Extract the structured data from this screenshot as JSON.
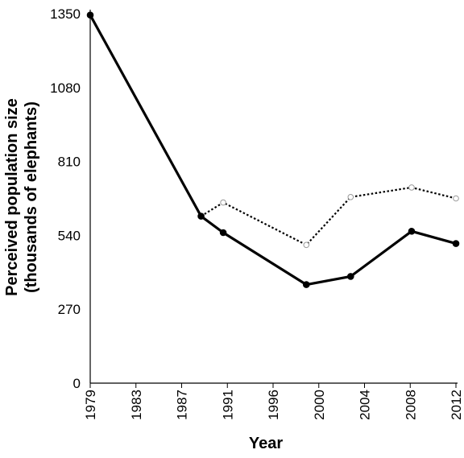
{
  "chart_data": {
    "type": "line",
    "xlabel": "Year",
    "ylabel_line1": "Perceived population size",
    "ylabel_line2": "(thousands of elephants)",
    "x_ticks": [
      "1979",
      "1983",
      "1987",
      "1991",
      "1996",
      "2000",
      "2004",
      "2008",
      "2012"
    ],
    "y_ticks": [
      0,
      270,
      540,
      810,
      1080,
      1350
    ],
    "ylim": [
      0,
      1350
    ],
    "x_domain": [
      1979,
      2012
    ],
    "grid": false,
    "legend": "none",
    "series": [
      {
        "style": "solid",
        "marker": "filled-circle",
        "color": "#000000",
        "points": [
          {
            "x": 1979,
            "y": 1345
          },
          {
            "x": 1989,
            "y": 610
          },
          {
            "x": 1991,
            "y": 550
          },
          {
            "x": 1998.5,
            "y": 360
          },
          {
            "x": 2002.5,
            "y": 390
          },
          {
            "x": 2008,
            "y": 555
          },
          {
            "x": 2012,
            "y": 510
          }
        ]
      },
      {
        "style": "dotted",
        "marker": "open-circle",
        "color": "#000000",
        "points": [
          {
            "x": 1989,
            "y": 610
          },
          {
            "x": 1991,
            "y": 660
          },
          {
            "x": 1998.5,
            "y": 505
          },
          {
            "x": 2002.5,
            "y": 680
          },
          {
            "x": 2008,
            "y": 715
          },
          {
            "x": 2012,
            "y": 675
          }
        ]
      }
    ]
  }
}
